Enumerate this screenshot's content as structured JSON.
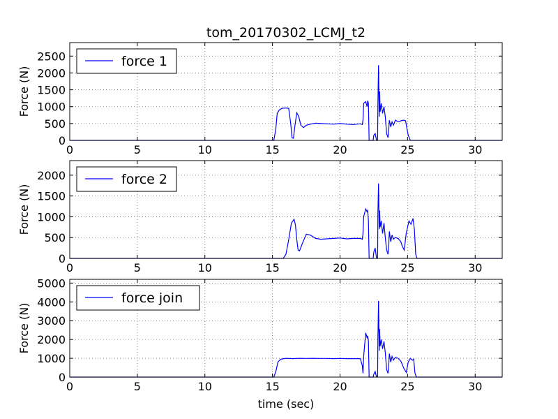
{
  "chart_data": {
    "type": "line",
    "title": "tom_20170302_LCMJ_t2",
    "xlabel": "time (sec)",
    "xlim": [
      0,
      32
    ],
    "xticks": [
      0,
      5,
      10,
      15,
      20,
      25,
      30
    ],
    "color": "#0000ff",
    "grid": true,
    "legend_position": "top-left",
    "panels": [
      {
        "ylabel": "Force (N)",
        "ylim": [
          0,
          2900
        ],
        "yticks": [
          0,
          500,
          1000,
          1500,
          2000,
          2500
        ],
        "series": [
          {
            "name": "force 1",
            "x": [
              0,
              15.1,
              15.25,
              15.35,
              15.5,
              15.7,
              16.0,
              16.2,
              16.35,
              16.45,
              16.55,
              16.65,
              16.8,
              16.95,
              17.1,
              17.3,
              17.5,
              17.8,
              18.2,
              18.6,
              19.0,
              19.5,
              20.0,
              20.5,
              21.0,
              21.5,
              21.65,
              21.7,
              21.75,
              21.9,
              22.0,
              22.05,
              22.1,
              22.15,
              22.45,
              22.5,
              22.6,
              22.7,
              22.78,
              22.8,
              22.85,
              22.9,
              22.93,
              22.97,
              23.05,
              23.15,
              23.25,
              23.35,
              23.45,
              23.55,
              23.6,
              23.65,
              23.75,
              23.85,
              23.95,
              24.1,
              24.3,
              24.5,
              24.7,
              24.85,
              24.95,
              25.05,
              25.2,
              32
            ],
            "y": [
              0,
              0,
              350,
              800,
              900,
              950,
              960,
              950,
              500,
              80,
              60,
              400,
              820,
              700,
              450,
              380,
              450,
              480,
              510,
              500,
              490,
              480,
              500,
              480,
              470,
              490,
              470,
              600,
              1100,
              1150,
              1000,
              1180,
              1100,
              0,
              0,
              150,
              200,
              0,
              0,
              1100,
              2230,
              700,
              1450,
              850,
              1100,
              800,
              1000,
              700,
              200,
              80,
              300,
              600,
              400,
              550,
              450,
              600,
              550,
              580,
              600,
              580,
              350,
              150,
              0,
              0
            ]
          }
        ]
      },
      {
        "ylabel": "Force (N)",
        "ylim": [
          0,
          2350
        ],
        "yticks": [
          0,
          500,
          1000,
          1500,
          2000
        ],
        "series": [
          {
            "name": "force 2",
            "x": [
              0,
              15.8,
              16.0,
              16.2,
              16.4,
              16.6,
              16.7,
              16.8,
              16.9,
              17.0,
              17.2,
              17.5,
              17.8,
              18.2,
              18.6,
              19.0,
              19.5,
              20.0,
              20.5,
              21.0,
              21.5,
              21.65,
              21.7,
              21.75,
              21.9,
              22.0,
              22.05,
              22.1,
              22.15,
              22.45,
              22.5,
              22.6,
              22.7,
              22.78,
              22.8,
              22.85,
              22.9,
              22.93,
              22.97,
              23.05,
              23.15,
              23.25,
              23.35,
              23.45,
              23.55,
              23.6,
              23.65,
              23.75,
              23.85,
              23.95,
              24.1,
              24.3,
              24.5,
              24.6,
              24.75,
              24.9,
              25.1,
              25.25,
              25.4,
              25.5,
              25.6,
              25.7,
              32
            ],
            "y": [
              0,
              0,
              100,
              450,
              850,
              940,
              800,
              450,
              200,
              180,
              350,
              580,
              560,
              480,
              460,
              470,
              480,
              490,
              470,
              480,
              480,
              460,
              600,
              1000,
              1190,
              1120,
              1150,
              900,
              0,
              0,
              150,
              250,
              0,
              0,
              1100,
              1800,
              700,
              1150,
              750,
              900,
              600,
              850,
              500,
              200,
              100,
              300,
              650,
              400,
              560,
              460,
              500,
              480,
              400,
              300,
              200,
              600,
              900,
              820,
              960,
              700,
              100,
              0,
              0
            ]
          }
        ]
      },
      {
        "ylabel": "Force (N)",
        "ylim": [
          0,
          5200
        ],
        "yticks": [
          0,
          1000,
          2000,
          3000,
          4000,
          5000
        ],
        "series": [
          {
            "name": "force join",
            "x": [
              0,
              15.1,
              15.25,
              15.4,
              15.6,
              16.0,
              16.5,
              17.0,
              17.5,
              18.0,
              18.5,
              19.0,
              19.5,
              20.0,
              20.5,
              21.0,
              21.5,
              21.65,
              21.7,
              21.75,
              21.9,
              22.0,
              22.05,
              22.1,
              22.15,
              22.45,
              22.5,
              22.6,
              22.7,
              22.78,
              22.8,
              22.85,
              22.9,
              22.93,
              22.97,
              23.05,
              23.15,
              23.25,
              23.35,
              23.45,
              23.55,
              23.6,
              23.65,
              23.75,
              23.85,
              23.95,
              24.1,
              24.3,
              24.5,
              24.7,
              24.9,
              25.05,
              25.2,
              25.35,
              25.45,
              25.55,
              25.65,
              32
            ],
            "y": [
              0,
              0,
              300,
              800,
              950,
              1000,
              980,
              1000,
              990,
              1000,
              990,
              990,
              980,
              990,
              980,
              980,
              980,
              600,
              200,
              1100,
              2350,
              2100,
              2200,
              1900,
              0,
              0,
              150,
              300,
              0,
              0,
              2100,
              4050,
              1400,
              2550,
              1650,
              2000,
              1500,
              1900,
              1300,
              400,
              200,
              600,
              1250,
              800,
              1100,
              900,
              1050,
              1000,
              850,
              500,
              250,
              800,
              1000,
              900,
              950,
              200,
              0,
              0
            ]
          }
        ]
      }
    ]
  }
}
